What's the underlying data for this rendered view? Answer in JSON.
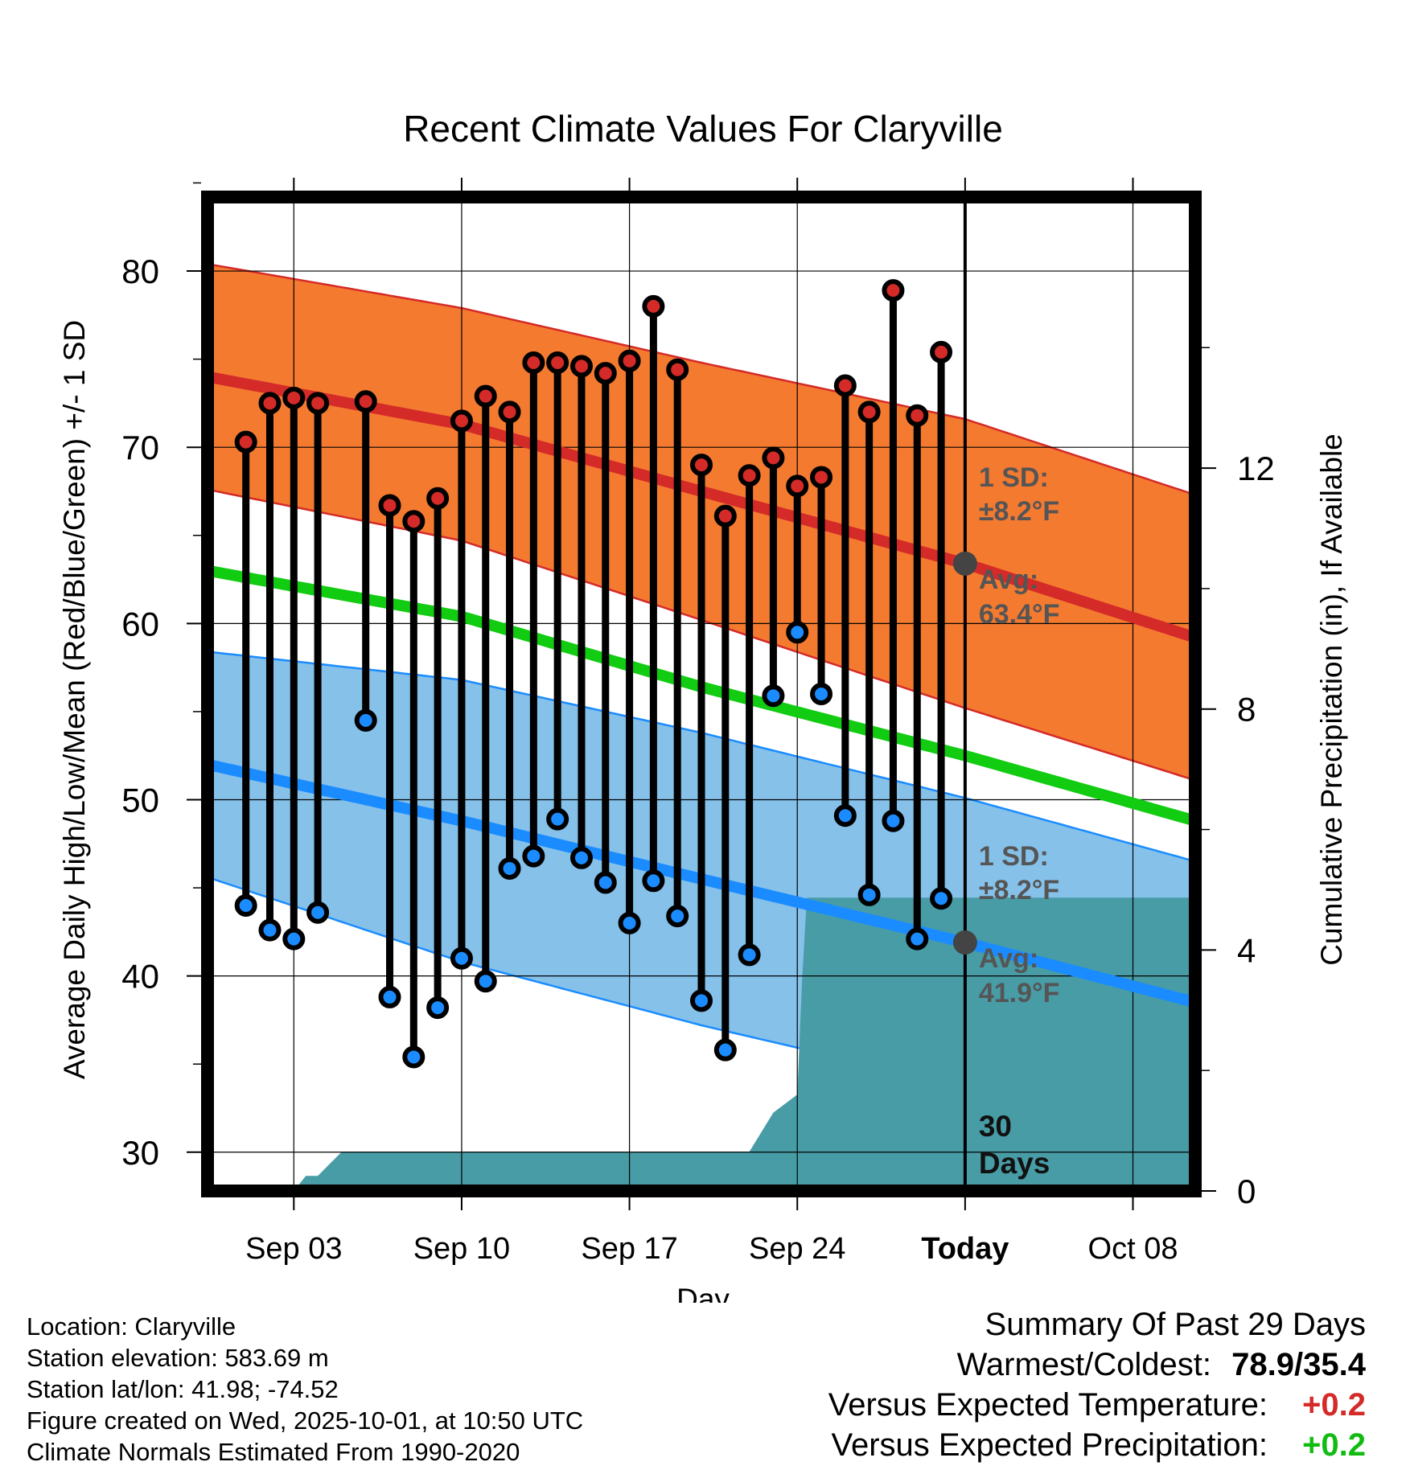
{
  "chart_data": {
    "type": "line",
    "title": "Recent Climate Values For Claryville",
    "xlabel": "Day",
    "ylabel": "Average Daily High/Low/Mean (Red/Blue/Green) +/- 1 SD",
    "y2label": "Cumulative Precipitation (in), If Available",
    "ylim": [
      27.8,
      84.2
    ],
    "y2lim": [
      0,
      16.5
    ],
    "xlim": [
      -0.6,
      40.6
    ],
    "yticks": [
      "30",
      "40",
      "50",
      "60",
      "70",
      "80"
    ],
    "y2ticks": [
      "0",
      "4",
      "8",
      "12"
    ],
    "xticks": [
      {
        "day": 3,
        "label": "Sep 03"
      },
      {
        "day": 10,
        "label": "Sep 10"
      },
      {
        "day": 17,
        "label": "Sep 17"
      },
      {
        "day": 24,
        "label": "Sep 24"
      },
      {
        "day": 31,
        "label": "Today"
      },
      {
        "day": 38,
        "label": "Oct 08"
      }
    ],
    "today_day": 31,
    "today_annotation": "30\nDays",
    "normals": {
      "x": [
        -0.6,
        10,
        20,
        31,
        40.6
      ],
      "high_mean": [
        74.0,
        71.3,
        67.5,
        63.4,
        59.2
      ],
      "high_sd": [
        6.4,
        6.6,
        7.3,
        8.2,
        8.1
      ],
      "mean": [
        63.0,
        60.4,
        56.4,
        52.5,
        48.8
      ],
      "low_mean": [
        52.0,
        48.8,
        45.5,
        41.9,
        38.5
      ],
      "low_sd": [
        6.4,
        8.0,
        8.3,
        8.2,
        8.0
      ]
    },
    "observations": {
      "day": [
        1,
        2,
        3,
        4,
        6,
        7,
        8,
        9,
        10,
        11,
        12,
        13,
        14,
        15,
        16,
        17,
        18,
        19,
        20,
        21,
        22,
        23,
        24,
        25,
        26,
        27,
        28,
        29,
        30
      ],
      "high": [
        70.3,
        72.5,
        72.8,
        72.5,
        72.6,
        66.7,
        65.8,
        67.1,
        71.5,
        72.9,
        72.0,
        74.8,
        74.8,
        74.6,
        74.2,
        74.9,
        78.0,
        74.4,
        69.0,
        66.1,
        68.4,
        69.4,
        67.8,
        68.3,
        73.5,
        72.0,
        78.9,
        71.8,
        75.4
      ],
      "low": [
        44.0,
        42.6,
        42.1,
        43.6,
        54.5,
        38.8,
        35.4,
        38.2,
        41.0,
        39.7,
        46.1,
        46.8,
        48.9,
        46.7,
        45.3,
        43.0,
        45.4,
        43.4,
        38.6,
        35.8,
        41.2,
        55.9,
        59.5,
        56.0,
        49.1,
        44.6,
        48.8,
        42.1,
        44.4
      ]
    },
    "precipitation": {
      "day": [
        -0.6,
        0.6,
        1,
        2,
        3,
        3.5,
        4,
        5,
        6,
        7,
        8,
        9,
        10,
        11,
        12,
        13,
        14,
        15,
        16,
        17,
        18,
        19,
        20,
        21,
        22,
        23,
        24,
        24.2,
        24.4,
        25,
        26,
        27,
        28,
        29,
        30,
        31,
        40.6
      ],
      "cumulative": [
        0,
        0,
        0,
        0,
        0,
        0.25,
        0.25,
        0.65,
        0.65,
        0.65,
        0.65,
        0.65,
        0.65,
        0.65,
        0.65,
        0.65,
        0.65,
        0.65,
        0.65,
        0.65,
        0.65,
        0.65,
        0.65,
        0.65,
        0.65,
        1.3,
        1.6,
        3.5,
        4.87,
        4.87,
        4.87,
        4.87,
        4.87,
        4.87,
        4.87,
        4.87,
        4.87
      ]
    },
    "annotations": {
      "high_sd_label": "1 SD:",
      "high_sd_value": "±8.2°F",
      "high_avg_label": "Avg:",
      "high_avg_value": "63.4°F",
      "low_sd_label": "1 SD:",
      "low_sd_value": "±8.2°F",
      "low_avg_label": "Avg:",
      "low_avg_value": "41.9°F"
    },
    "colors": {
      "high_band": "#f47a30",
      "high_line": "#d42a28",
      "mean_line": "#11cc11",
      "low_band": "#86c1ea",
      "low_line": "#1a8cff",
      "precip": "#489ca6",
      "high_dot": "#d42a28",
      "low_dot": "#1a8cff",
      "annotation": "#555555"
    }
  },
  "info": {
    "location": "Location: Claryville",
    "elevation": "Station elevation: 583.69 m",
    "latlon": "Station lat/lon: 41.98; -74.52",
    "created": "Figure created on Wed, 2025-10-01, at 10:50 UTC",
    "normals": "Climate Normals Estimated From 1990-2020"
  },
  "summary": {
    "title": "Summary Of Past 29 Days",
    "warmest_label": "Warmest/Coldest:",
    "warmest_value": "78.9/35.4",
    "temp_label": "Versus Expected Temperature:",
    "temp_value": "+0.2",
    "temp_color": "#d42a28",
    "precip_label": "Versus Expected Precipitation:",
    "precip_value": "+0.2",
    "precip_color": "#11bb11"
  }
}
